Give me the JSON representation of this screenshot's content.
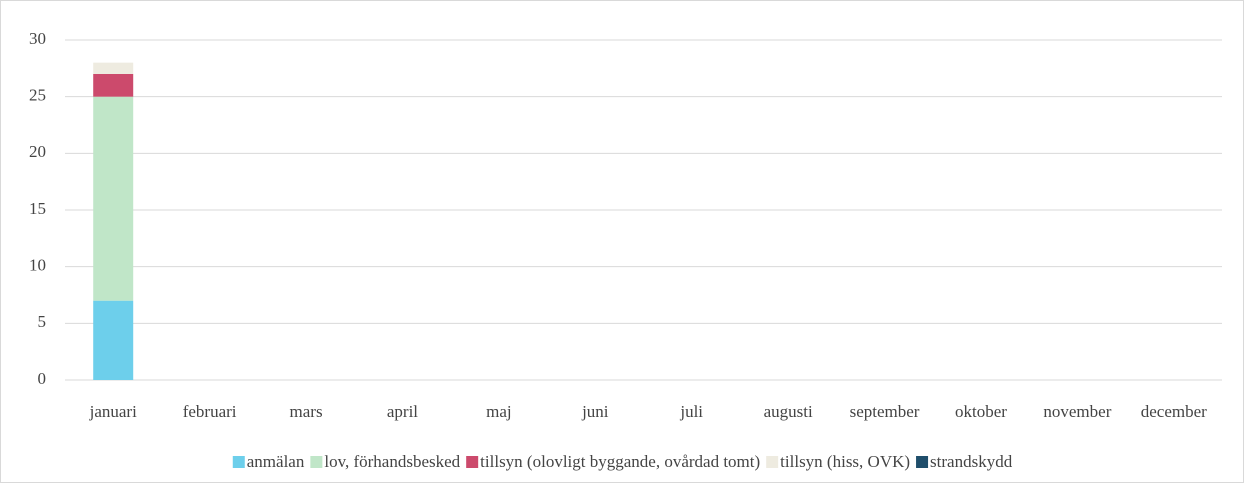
{
  "chart_data": {
    "type": "stacked_bar",
    "categories": [
      "januari",
      "februari",
      "mars",
      "april",
      "maj",
      "juni",
      "juli",
      "augusti",
      "september",
      "oktober",
      "november",
      "december"
    ],
    "series": [
      {
        "name": "anmälan",
        "color": "#6dcfeb",
        "values": [
          7,
          0,
          0,
          0,
          0,
          0,
          0,
          0,
          0,
          0,
          0,
          0
        ]
      },
      {
        "name": "lov, förhandsbesked",
        "color": "#c0e6c8",
        "values": [
          18,
          0,
          0,
          0,
          0,
          0,
          0,
          0,
          0,
          0,
          0,
          0
        ]
      },
      {
        "name": "tillsyn (olovligt byggande, ovårdad tomt)",
        "color": "#cc4a6c",
        "values": [
          2,
          0,
          0,
          0,
          0,
          0,
          0,
          0,
          0,
          0,
          0,
          0
        ]
      },
      {
        "name": "tillsyn (hiss, OVK)",
        "color": "#eeebe0",
        "values": [
          1,
          0,
          0,
          0,
          0,
          0,
          0,
          0,
          0,
          0,
          0,
          0
        ]
      },
      {
        "name": "strandskydd",
        "color": "#1f4e6b",
        "values": [
          0,
          0,
          0,
          0,
          0,
          0,
          0,
          0,
          0,
          0,
          0,
          0
        ]
      }
    ],
    "ylim": [
      0,
      30
    ],
    "yticks": [
      0,
      5,
      10,
      15,
      20,
      25,
      30
    ],
    "grid": true,
    "legend": "bottom"
  }
}
